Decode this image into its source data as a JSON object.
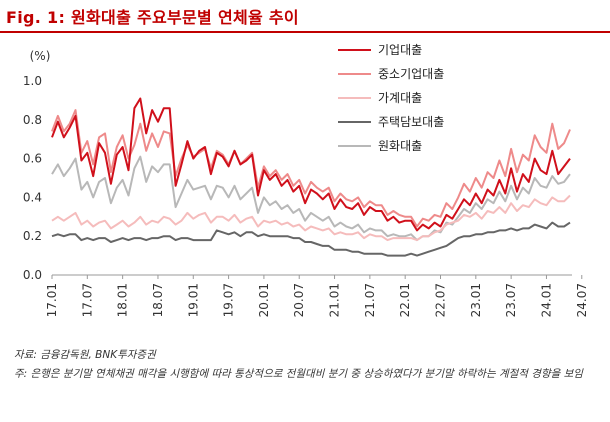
{
  "header": {
    "title": "Fig. 1: 원화대출 주요부문별 연체율 추이"
  },
  "chart_data": {
    "type": "line",
    "ylabel": "(%)",
    "ylim": [
      0,
      1.0
    ],
    "yticks": [
      "0.0",
      "0.2",
      "0.4",
      "0.6",
      "0.8",
      "1.0"
    ],
    "xtick_labels": [
      "17.01",
      "17.07",
      "18.01",
      "18.07",
      "19.01",
      "19.07",
      "20.01",
      "20.07",
      "21.01",
      "21.07",
      "22.01",
      "22.07",
      "23.01",
      "23.07",
      "24.01",
      "24.07"
    ],
    "x_start": "17.01",
    "grid": false,
    "legend_position": "top-right",
    "series": [
      {
        "name": "기업대출",
        "color": "#d0101b",
        "width": 2,
        "values": [
          0.71,
          0.79,
          0.71,
          0.76,
          0.82,
          0.59,
          0.63,
          0.51,
          0.68,
          0.63,
          0.47,
          0.62,
          0.66,
          0.54,
          0.86,
          0.91,
          0.73,
          0.85,
          0.79,
          0.86,
          0.86,
          0.46,
          0.57,
          0.69,
          0.6,
          0.64,
          0.66,
          0.52,
          0.63,
          0.61,
          0.56,
          0.64,
          0.57,
          0.59,
          0.62,
          0.41,
          0.54,
          0.49,
          0.52,
          0.46,
          0.49,
          0.43,
          0.46,
          0.37,
          0.44,
          0.42,
          0.39,
          0.42,
          0.34,
          0.39,
          0.35,
          0.34,
          0.37,
          0.31,
          0.35,
          0.33,
          0.33,
          0.28,
          0.3,
          0.27,
          0.28,
          0.28,
          0.23,
          0.26,
          0.24,
          0.27,
          0.25,
          0.31,
          0.29,
          0.34,
          0.39,
          0.36,
          0.42,
          0.37,
          0.44,
          0.41,
          0.49,
          0.42,
          0.55,
          0.43,
          0.52,
          0.48,
          0.6,
          0.54,
          0.52,
          0.64,
          0.52,
          0.56,
          0.6
        ]
      },
      {
        "name": "중소기업대출",
        "color": "#ee8a8a",
        "width": 2,
        "values": [
          0.74,
          0.82,
          0.74,
          0.78,
          0.85,
          0.63,
          0.69,
          0.57,
          0.71,
          0.73,
          0.53,
          0.66,
          0.72,
          0.6,
          0.67,
          0.78,
          0.64,
          0.73,
          0.66,
          0.74,
          0.73,
          0.51,
          0.6,
          0.67,
          0.61,
          0.63,
          0.65,
          0.55,
          0.64,
          0.62,
          0.57,
          0.64,
          0.57,
          0.6,
          0.63,
          0.45,
          0.56,
          0.51,
          0.54,
          0.49,
          0.52,
          0.46,
          0.49,
          0.42,
          0.48,
          0.45,
          0.43,
          0.45,
          0.38,
          0.42,
          0.39,
          0.38,
          0.4,
          0.35,
          0.38,
          0.36,
          0.36,
          0.31,
          0.33,
          0.31,
          0.3,
          0.3,
          0.25,
          0.29,
          0.28,
          0.31,
          0.3,
          0.37,
          0.34,
          0.4,
          0.47,
          0.43,
          0.5,
          0.45,
          0.53,
          0.5,
          0.59,
          0.51,
          0.65,
          0.53,
          0.62,
          0.59,
          0.72,
          0.66,
          0.63,
          0.78,
          0.65,
          0.68,
          0.75
        ]
      },
      {
        "name": "가계대출",
        "color": "#f5bcbc",
        "width": 2,
        "values": [
          0.28,
          0.3,
          0.28,
          0.3,
          0.32,
          0.26,
          0.28,
          0.25,
          0.27,
          0.28,
          0.24,
          0.26,
          0.28,
          0.25,
          0.27,
          0.3,
          0.26,
          0.28,
          0.27,
          0.3,
          0.29,
          0.26,
          0.28,
          0.32,
          0.29,
          0.31,
          0.32,
          0.27,
          0.3,
          0.3,
          0.28,
          0.31,
          0.27,
          0.29,
          0.3,
          0.25,
          0.28,
          0.27,
          0.28,
          0.26,
          0.27,
          0.25,
          0.26,
          0.23,
          0.25,
          0.24,
          0.23,
          0.24,
          0.21,
          0.22,
          0.21,
          0.21,
          0.22,
          0.19,
          0.21,
          0.2,
          0.2,
          0.18,
          0.19,
          0.19,
          0.19,
          0.19,
          0.18,
          0.2,
          0.2,
          0.22,
          0.23,
          0.26,
          0.27,
          0.28,
          0.31,
          0.3,
          0.32,
          0.29,
          0.33,
          0.32,
          0.35,
          0.32,
          0.37,
          0.33,
          0.36,
          0.35,
          0.39,
          0.37,
          0.36,
          0.4,
          0.38,
          0.38,
          0.41
        ]
      },
      {
        "name": "주택담보대출",
        "color": "#666666",
        "width": 2,
        "values": [
          0.2,
          0.21,
          0.2,
          0.21,
          0.21,
          0.18,
          0.19,
          0.18,
          0.19,
          0.19,
          0.17,
          0.18,
          0.19,
          0.18,
          0.19,
          0.19,
          0.18,
          0.19,
          0.19,
          0.2,
          0.2,
          0.18,
          0.19,
          0.19,
          0.18,
          0.18,
          0.18,
          0.18,
          0.23,
          0.22,
          0.21,
          0.22,
          0.2,
          0.22,
          0.22,
          0.2,
          0.21,
          0.2,
          0.2,
          0.2,
          0.2,
          0.19,
          0.19,
          0.17,
          0.17,
          0.16,
          0.15,
          0.15,
          0.13,
          0.13,
          0.13,
          0.12,
          0.12,
          0.11,
          0.11,
          0.11,
          0.11,
          0.1,
          0.1,
          0.1,
          0.1,
          0.11,
          0.1,
          0.11,
          0.12,
          0.13,
          0.14,
          0.15,
          0.17,
          0.19,
          0.2,
          0.2,
          0.21,
          0.21,
          0.22,
          0.22,
          0.23,
          0.23,
          0.24,
          0.23,
          0.24,
          0.24,
          0.26,
          0.25,
          0.24,
          0.27,
          0.25,
          0.25,
          0.27
        ]
      },
      {
        "name": "원화대출",
        "color": "#b8b8b8",
        "width": 2,
        "values": [
          0.52,
          0.57,
          0.51,
          0.55,
          0.6,
          0.44,
          0.48,
          0.4,
          0.48,
          0.5,
          0.37,
          0.45,
          0.49,
          0.41,
          0.55,
          0.61,
          0.48,
          0.56,
          0.53,
          0.57,
          0.57,
          0.35,
          0.42,
          0.49,
          0.44,
          0.45,
          0.46,
          0.39,
          0.46,
          0.45,
          0.4,
          0.46,
          0.39,
          0.42,
          0.45,
          0.32,
          0.4,
          0.36,
          0.38,
          0.34,
          0.36,
          0.32,
          0.34,
          0.28,
          0.32,
          0.3,
          0.28,
          0.3,
          0.25,
          0.27,
          0.25,
          0.24,
          0.26,
          0.22,
          0.24,
          0.23,
          0.23,
          0.2,
          0.21,
          0.2,
          0.2,
          0.21,
          0.18,
          0.2,
          0.2,
          0.23,
          0.22,
          0.27,
          0.26,
          0.3,
          0.34,
          0.32,
          0.37,
          0.34,
          0.39,
          0.37,
          0.43,
          0.38,
          0.46,
          0.39,
          0.45,
          0.42,
          0.5,
          0.46,
          0.45,
          0.51,
          0.47,
          0.48,
          0.52
        ]
      }
    ]
  },
  "notes": {
    "source": "자료: 금융감독원, BNK투자증권",
    "footnote": "주: 은행은 분기말 연체채권 매각을 시행함에 따라 통상적으로 전월대비 분기 중 상승하였다가 분기말 하락하는 계절적 경향을 보임"
  }
}
